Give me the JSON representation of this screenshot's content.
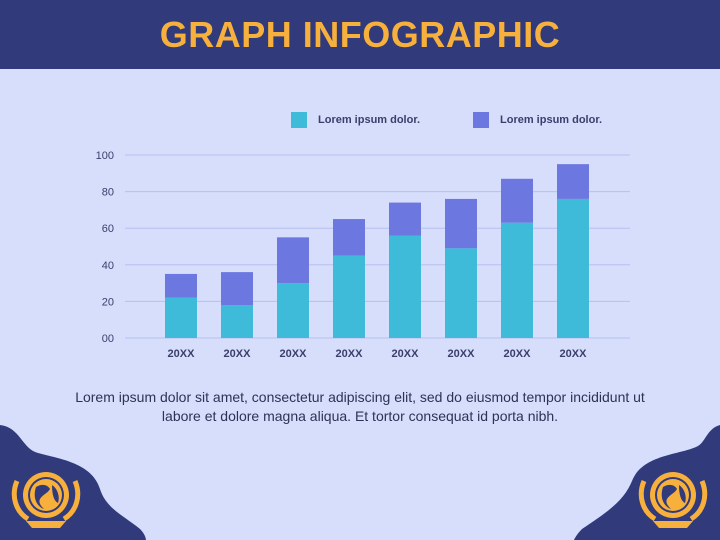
{
  "header": {
    "title": "GRAPH INFOGRAPHIC"
  },
  "colors": {
    "header_bg": "#313a7a",
    "page_bg": "#d6defc",
    "title": "#f7b03c",
    "series1": "#3dbbd8",
    "series2": "#6c78e0",
    "emblem": "#f7b03c",
    "corner_blob": "#313a7a"
  },
  "chart_data": {
    "type": "bar",
    "stacked": true,
    "categories": [
      "20XX",
      "20XX",
      "20XX",
      "20XX",
      "20XX",
      "20XX",
      "20XX",
      "20XX"
    ],
    "series": [
      {
        "name": "Lorem ipsum dolor.",
        "values": [
          22,
          18,
          30,
          45,
          56,
          49,
          63,
          76
        ]
      },
      {
        "name": "Lorem ipsum dolor.",
        "values": [
          13,
          18,
          25,
          20,
          18,
          27,
          24,
          19
        ]
      }
    ],
    "yticks": [
      "00",
      "20",
      "40",
      "60",
      "80",
      "100"
    ],
    "ylim": [
      0,
      100
    ],
    "grid": true,
    "legend": "top-right"
  },
  "caption": "Lorem ipsum dolor sit amet, consectetur adipiscing elit, sed do eiusmod tempor incididunt ut labore et dolore magna aliqua. Et tortor consequat id porta nibh.",
  "decor": {
    "left_icon": "globe-laurel-emblem-icon",
    "right_icon": "globe-laurel-emblem-icon"
  }
}
